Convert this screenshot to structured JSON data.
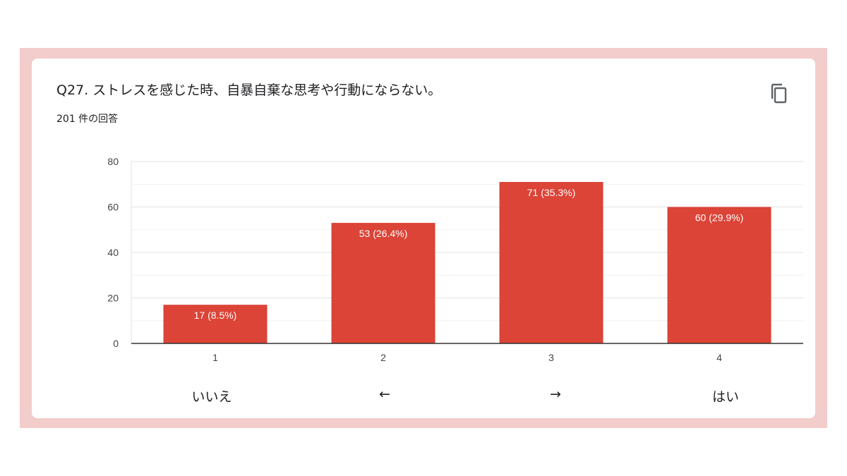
{
  "question": {
    "title": "Q27.  ストレスを感じた時、自暴自棄な思考や行動にならない。",
    "response_count": "201 件の回答"
  },
  "copy_icon": "copy-icon",
  "scale_labels": [
    "いいえ",
    "←",
    "→",
    "はい"
  ],
  "chart_data": {
    "type": "bar",
    "categories": [
      "1",
      "2",
      "3",
      "4"
    ],
    "values": [
      17,
      53,
      71,
      60
    ],
    "data_labels": [
      "17 (8.5%)",
      "53 (26.4%)",
      "71 (35.3%)",
      "60 (29.9%)"
    ],
    "ylim": [
      0,
      80
    ],
    "yticks": [
      0,
      20,
      40,
      60,
      80
    ],
    "bar_color": "#db4437",
    "grid": true
  }
}
